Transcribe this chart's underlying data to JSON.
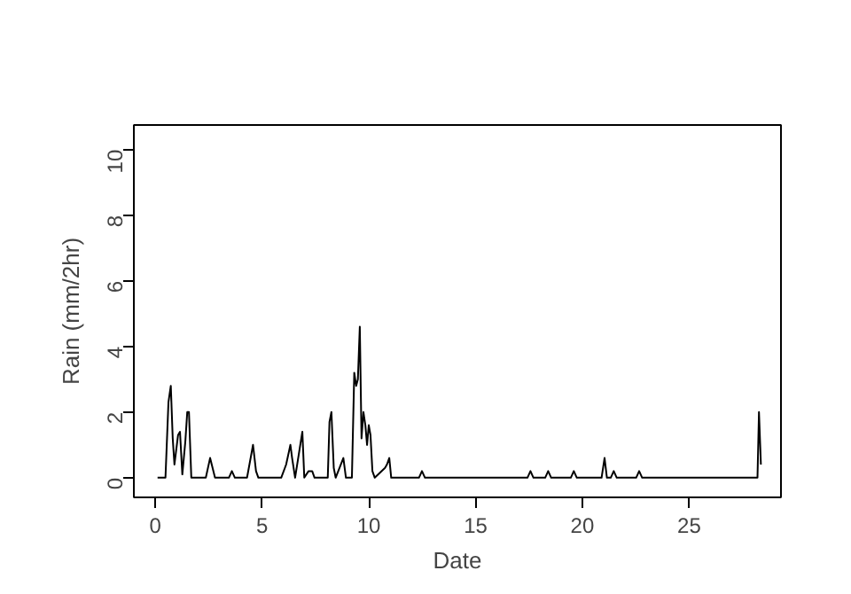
{
  "chart_data": {
    "type": "line",
    "xlabel": "Date",
    "ylabel": "Rain (mm/2hr)",
    "xlim": [
      -1.0,
      29.3
    ],
    "ylim": [
      -0.6,
      10.75
    ],
    "xticks": [
      0,
      5,
      10,
      15,
      20,
      25
    ],
    "yticks": [
      0,
      2,
      4,
      6,
      8,
      10
    ],
    "grid": false,
    "marker": "none",
    "line_style": "solid",
    "series": [
      {
        "color": "#000000",
        "x": [
          0.11,
          0.48,
          0.62,
          0.73,
          0.82,
          0.9,
          1.07,
          1.16,
          1.27,
          1.41,
          1.5,
          1.58,
          1.69,
          2.37,
          2.57,
          2.8,
          3.45,
          3.59,
          3.73,
          4.3,
          4.58,
          4.72,
          4.83,
          5.9,
          6.13,
          6.33,
          6.41,
          6.55,
          6.89,
          6.98,
          7.18,
          7.35,
          7.46,
          8.08,
          8.16,
          8.25,
          8.36,
          8.45,
          8.81,
          8.93,
          9.21,
          9.32,
          9.41,
          9.49,
          9.58,
          9.66,
          9.75,
          9.84,
          9.92,
          10.0,
          10.08,
          10.17,
          10.28,
          10.76,
          10.85,
          10.96,
          11.05,
          12.35,
          12.49,
          12.63,
          17.43,
          17.57,
          17.71,
          18.26,
          18.4,
          18.54,
          19.46,
          19.6,
          19.74,
          20.9,
          21.04,
          21.15,
          21.33,
          21.47,
          21.61,
          22.52,
          22.66,
          22.8,
          28.2,
          28.27,
          28.36
        ],
        "values": [
          0,
          0,
          2.3,
          2.8,
          1.2,
          0.4,
          1.3,
          1.4,
          0.1,
          1.1,
          2.0,
          2.0,
          0,
          0,
          0.6,
          0,
          0,
          0.2,
          0,
          0,
          1.0,
          0.2,
          0,
          0,
          0.4,
          1.0,
          0.6,
          0,
          1.4,
          0,
          0.2,
          0.2,
          0,
          0,
          1.7,
          2.0,
          0.3,
          0,
          0.6,
          0,
          0,
          3.2,
          2.8,
          3.0,
          4.6,
          1.2,
          2.0,
          1.6,
          1.0,
          1.6,
          1.3,
          0.2,
          0,
          0.3,
          0.4,
          0.6,
          0,
          0,
          0.2,
          0,
          0,
          0.2,
          0,
          0,
          0.2,
          0,
          0,
          0.2,
          0,
          0,
          0.6,
          0,
          0,
          0.2,
          0,
          0,
          0.2,
          0,
          0,
          2.0,
          0.4
        ]
      }
    ]
  }
}
